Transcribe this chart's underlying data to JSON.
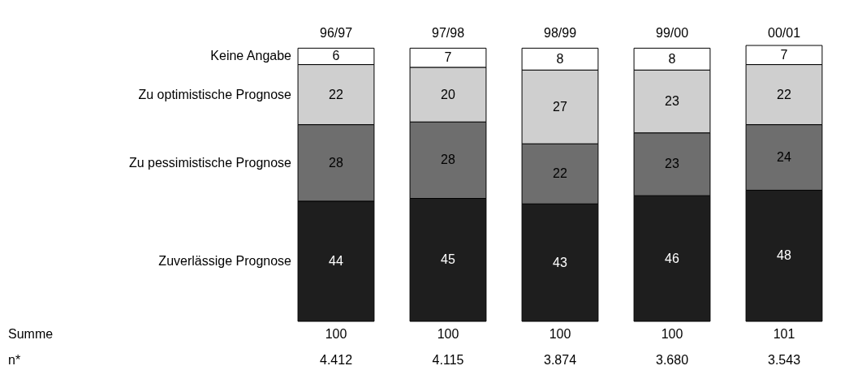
{
  "chart_data": {
    "type": "bar",
    "stacked": true,
    "data_labels": true,
    "legend": "left",
    "categories": [
      "96/97",
      "97/98",
      "98/99",
      "99/00",
      "00/01"
    ],
    "series": [
      {
        "name": "Zuverlässige Prognose",
        "color": "#1e1e1e",
        "values": [
          44,
          45,
          43,
          46,
          48
        ]
      },
      {
        "name": "Zu pessimistische Prognose",
        "color": "#6e6e6e",
        "values": [
          28,
          28,
          22,
          23,
          24
        ]
      },
      {
        "name": "Zu optimistische Prognose",
        "color": "#cfcfcf",
        "values": [
          22,
          20,
          27,
          23,
          22
        ]
      },
      {
        "name": "Keine Angabe",
        "color": "#ffffff",
        "values": [
          6,
          7,
          8,
          8,
          7
        ]
      }
    ],
    "totals": [
      "100",
      "100",
      "100",
      "100",
      "101"
    ],
    "annotations": [
      "Summe",
      "n*",
      "4.412",
      "4.115",
      "3.874",
      "3.680",
      "3.543"
    ]
  }
}
